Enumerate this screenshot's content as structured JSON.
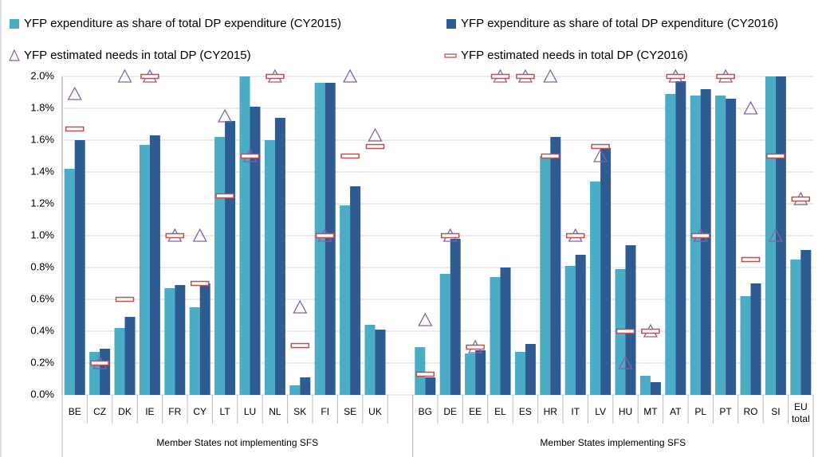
{
  "chart_data": {
    "type": "bar",
    "categories": [
      "BE",
      "CZ",
      "DK",
      "IE",
      "FR",
      "CY",
      "LT",
      "LU",
      "NL",
      "SK",
      "FI",
      "SE",
      "UK",
      null,
      "BG",
      "DE",
      "EE",
      "EL",
      "ES",
      "HR",
      "IT",
      "LV",
      "HU",
      "MT",
      "AT",
      "PL",
      "PT",
      "RO",
      "SI",
      "EU total"
    ],
    "groups": [
      "Member States not implementing SFS",
      "Member States implementing SFS"
    ],
    "series": [
      {
        "name": "YFP expenditure as share of total DP expenditure (CY2015)",
        "color": "#4bacc6",
        "marker": "bar",
        "values": [
          1.42,
          0.27,
          0.42,
          1.57,
          0.67,
          0.55,
          1.62,
          2.0,
          1.6,
          0.06,
          1.96,
          1.19,
          0.44,
          null,
          0.3,
          0.76,
          0.26,
          0.74,
          0.27,
          1.5,
          0.81,
          1.34,
          0.79,
          0.12,
          1.89,
          1.88,
          1.88,
          0.62,
          2.0,
          0.85
        ]
      },
      {
        "name": "YFP expenditure as share of total DP expenditure (CY2016)",
        "color": "#2f5b93",
        "marker": "bar",
        "values": [
          1.6,
          0.29,
          0.49,
          1.63,
          0.69,
          0.7,
          1.72,
          1.81,
          1.74,
          0.11,
          1.96,
          1.31,
          0.41,
          null,
          0.11,
          0.98,
          0.28,
          0.8,
          0.32,
          1.62,
          0.88,
          1.55,
          0.94,
          0.08,
          1.97,
          1.92,
          1.86,
          0.7,
          2.0,
          0.91
        ]
      },
      {
        "name": "YFP estimated needs in total DP (CY2015)",
        "color": "#8064a2",
        "marker": "triangle",
        "values": [
          1.89,
          0.2,
          2.0,
          2.0,
          1.0,
          1.0,
          1.75,
          1.5,
          2.0,
          0.55,
          1.0,
          2.0,
          1.63,
          null,
          0.47,
          1.0,
          0.3,
          2.0,
          2.0,
          2.0,
          1.0,
          1.5,
          0.2,
          0.4,
          2.0,
          1.0,
          2.0,
          1.8,
          1.0,
          1.23
        ]
      },
      {
        "name": "YFP estimated needs in total DP (CY2016)",
        "color": "#c0504d",
        "marker": "dash",
        "values": [
          1.67,
          0.2,
          0.6,
          2.0,
          1.0,
          0.7,
          1.25,
          1.5,
          2.0,
          0.31,
          1.0,
          1.5,
          1.56,
          null,
          0.13,
          1.0,
          0.3,
          2.0,
          2.0,
          1.5,
          1.0,
          1.56,
          0.4,
          0.4,
          2.0,
          1.0,
          2.0,
          0.85,
          1.5,
          1.23
        ]
      }
    ],
    "ylim": [
      0,
      2.0
    ],
    "yticks": [
      {
        "value": 0,
        "label": "0.0%"
      },
      {
        "value": 0.2,
        "label": "0.2%"
      },
      {
        "value": 0.4,
        "label": "0.4%"
      },
      {
        "value": 0.6,
        "label": "0.6%"
      },
      {
        "value": 0.8,
        "label": "0.8%"
      },
      {
        "value": 1.0,
        "label": "1.0%"
      },
      {
        "value": 1.2,
        "label": "1.2%"
      },
      {
        "value": 1.4,
        "label": "1.4%"
      },
      {
        "value": 1.6,
        "label": "1.6%"
      },
      {
        "value": 1.8,
        "label": "1.8%"
      },
      {
        "value": 2.0,
        "label": "2.0%"
      }
    ],
    "grid": true
  }
}
